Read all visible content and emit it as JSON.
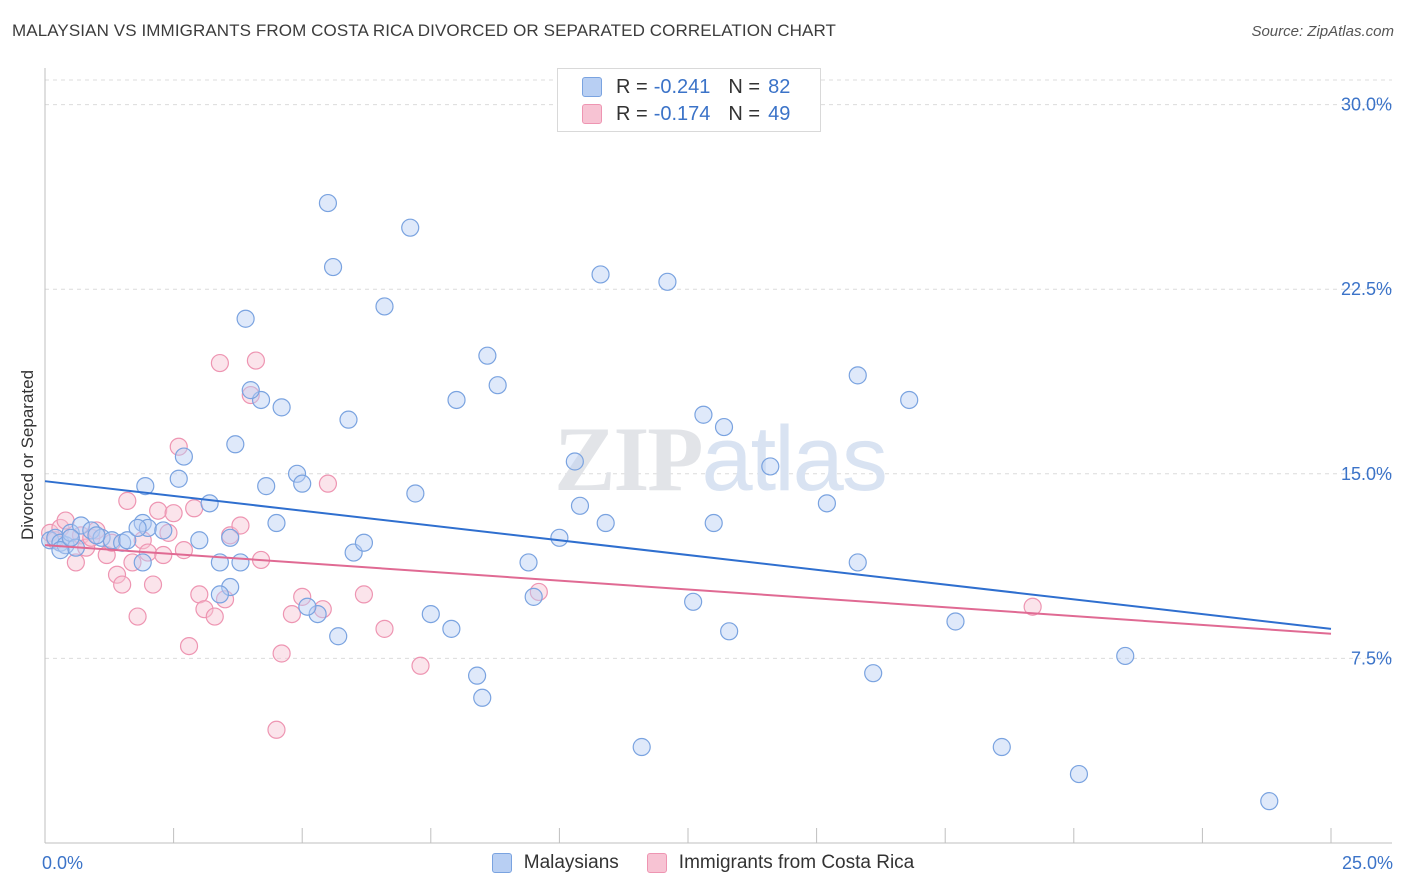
{
  "header": {
    "title": "MALAYSIAN VS IMMIGRANTS FROM COSTA RICA DIVORCED OR SEPARATED CORRELATION CHART",
    "source": "Source: ZipAtlas.com"
  },
  "watermark": "ZIPatlas",
  "legend": {
    "series1": {
      "r_label": "R =",
      "r_value": "-0.241",
      "n_label": "N =",
      "n_value": "82"
    },
    "series2": {
      "r_label": "R =",
      "r_value": "-0.174",
      "n_label": "N =",
      "n_value": "49"
    }
  },
  "colors": {
    "blue_fill": "#b8cff3",
    "blue_stroke": "#7aa3e0",
    "blue_line": "#2f6fcf",
    "pink_fill": "#f7c3d3",
    "pink_stroke": "#ee95b2",
    "pink_line": "#e06a93",
    "grid": "#dcdcdc",
    "axis_text": "#3b73c8"
  },
  "chart_data": {
    "type": "scatter",
    "title": "MALAYSIAN VS IMMIGRANTS FROM COSTA RICA DIVORCED OR SEPARATED CORRELATION CHART",
    "xlabel": "",
    "ylabel": "Divorced or Separated",
    "xlim": [
      0,
      25
    ],
    "ylim": [
      0,
      31
    ],
    "x_tick_labels": [
      "0.0%",
      "25.0%"
    ],
    "y_ticks": [
      7.5,
      15.0,
      22.5,
      30.0
    ],
    "y_tick_labels": [
      "7.5%",
      "15.0%",
      "22.5%",
      "30.0%"
    ],
    "grid": true,
    "legend_position": "bottom-center",
    "series": [
      {
        "name": "Malaysians",
        "r": -0.241,
        "n": 82,
        "trend": {
          "x": [
            0,
            25
          ],
          "y": [
            14.7,
            8.7
          ]
        },
        "points": [
          [
            0.1,
            12.3
          ],
          [
            0.2,
            12.4
          ],
          [
            0.3,
            12.2
          ],
          [
            0.4,
            12.1
          ],
          [
            0.5,
            12.6
          ],
          [
            0.7,
            12.9
          ],
          [
            0.9,
            12.7
          ],
          [
            1.1,
            12.4
          ],
          [
            1.3,
            12.3
          ],
          [
            1.5,
            12.2
          ],
          [
            0.6,
            12.0
          ],
          [
            0.3,
            11.9
          ],
          [
            1.6,
            12.3
          ],
          [
            1.9,
            13.0
          ],
          [
            2.0,
            12.8
          ],
          [
            2.3,
            12.7
          ],
          [
            1.8,
            12.8
          ],
          [
            1.9,
            11.4
          ],
          [
            1.95,
            14.5
          ],
          [
            2.6,
            14.8
          ],
          [
            3.0,
            12.3
          ],
          [
            3.2,
            13.8
          ],
          [
            3.6,
            12.4
          ],
          [
            2.7,
            15.7
          ],
          [
            3.4,
            11.4
          ],
          [
            3.8,
            11.4
          ],
          [
            3.6,
            10.4
          ],
          [
            3.4,
            10.1
          ],
          [
            3.7,
            16.2
          ],
          [
            4.2,
            18.0
          ],
          [
            4.0,
            18.4
          ],
          [
            4.6,
            17.7
          ],
          [
            4.5,
            13.0
          ],
          [
            4.3,
            14.5
          ],
          [
            3.9,
            21.3
          ],
          [
            4.9,
            15.0
          ],
          [
            5.0,
            14.6
          ],
          [
            5.3,
            9.3
          ],
          [
            5.7,
            8.4
          ],
          [
            5.1,
            9.6
          ],
          [
            5.6,
            23.4
          ],
          [
            5.5,
            26.0
          ],
          [
            5.9,
            17.2
          ],
          [
            6.0,
            11.8
          ],
          [
            6.2,
            12.2
          ],
          [
            6.6,
            21.8
          ],
          [
            7.1,
            25.0
          ],
          [
            7.2,
            14.2
          ],
          [
            7.5,
            9.3
          ],
          [
            7.9,
            8.7
          ],
          [
            8.0,
            18.0
          ],
          [
            8.6,
            19.8
          ],
          [
            8.4,
            6.8
          ],
          [
            8.5,
            5.9
          ],
          [
            8.8,
            18.6
          ],
          [
            9.4,
            11.4
          ],
          [
            9.5,
            10.0
          ],
          [
            10.0,
            12.4
          ],
          [
            10.3,
            15.5
          ],
          [
            10.4,
            13.7
          ],
          [
            10.8,
            23.1
          ],
          [
            10.9,
            13.0
          ],
          [
            11.6,
            3.9
          ],
          [
            12.1,
            22.8
          ],
          [
            12.6,
            9.8
          ],
          [
            12.8,
            17.4
          ],
          [
            13.0,
            13.0
          ],
          [
            13.2,
            16.9
          ],
          [
            13.3,
            8.6
          ],
          [
            14.1,
            15.3
          ],
          [
            15.2,
            13.8
          ],
          [
            15.8,
            19.0
          ],
          [
            15.8,
            11.4
          ],
          [
            16.1,
            6.9
          ],
          [
            16.8,
            18.0
          ],
          [
            17.7,
            9.0
          ],
          [
            18.6,
            3.9
          ],
          [
            20.1,
            2.8
          ],
          [
            21.0,
            7.6
          ],
          [
            23.8,
            1.7
          ],
          [
            0.5,
            12.4
          ],
          [
            1.0,
            12.5
          ]
        ]
      },
      {
        "name": "Immigrants from Costa Rica",
        "r": -0.174,
        "n": 49,
        "trend": {
          "x": [
            0,
            25
          ],
          "y": [
            12.1,
            8.5
          ]
        },
        "points": [
          [
            0.1,
            12.6
          ],
          [
            0.2,
            12.3
          ],
          [
            0.3,
            12.8
          ],
          [
            0.4,
            13.1
          ],
          [
            0.5,
            12.4
          ],
          [
            0.6,
            11.4
          ],
          [
            0.7,
            12.5
          ],
          [
            0.8,
            12.0
          ],
          [
            0.9,
            12.4
          ],
          [
            1.0,
            12.7
          ],
          [
            1.2,
            11.7
          ],
          [
            1.3,
            12.2
          ],
          [
            1.4,
            10.9
          ],
          [
            1.5,
            10.5
          ],
          [
            1.6,
            13.9
          ],
          [
            1.7,
            11.4
          ],
          [
            1.8,
            9.2
          ],
          [
            1.9,
            12.3
          ],
          [
            2.0,
            11.8
          ],
          [
            2.1,
            10.5
          ],
          [
            2.2,
            13.5
          ],
          [
            2.3,
            11.7
          ],
          [
            2.4,
            12.6
          ],
          [
            2.5,
            13.4
          ],
          [
            2.6,
            16.1
          ],
          [
            2.7,
            11.9
          ],
          [
            2.8,
            8.0
          ],
          [
            2.9,
            13.6
          ],
          [
            3.0,
            10.1
          ],
          [
            3.1,
            9.5
          ],
          [
            3.3,
            9.2
          ],
          [
            3.4,
            19.5
          ],
          [
            3.5,
            9.9
          ],
          [
            3.6,
            12.5
          ],
          [
            3.8,
            12.9
          ],
          [
            4.0,
            18.2
          ],
          [
            4.1,
            19.6
          ],
          [
            4.2,
            11.5
          ],
          [
            4.5,
            4.6
          ],
          [
            4.6,
            7.7
          ],
          [
            4.8,
            9.3
          ],
          [
            5.0,
            10.0
          ],
          [
            5.4,
            9.5
          ],
          [
            5.5,
            14.6
          ],
          [
            6.2,
            10.1
          ],
          [
            6.6,
            8.7
          ],
          [
            7.3,
            7.2
          ],
          [
            9.6,
            10.2
          ],
          [
            19.2,
            9.6
          ]
        ]
      }
    ]
  },
  "bottom_legend": {
    "series1_label": "Malaysians",
    "series2_label": "Immigrants from Costa Rica"
  }
}
